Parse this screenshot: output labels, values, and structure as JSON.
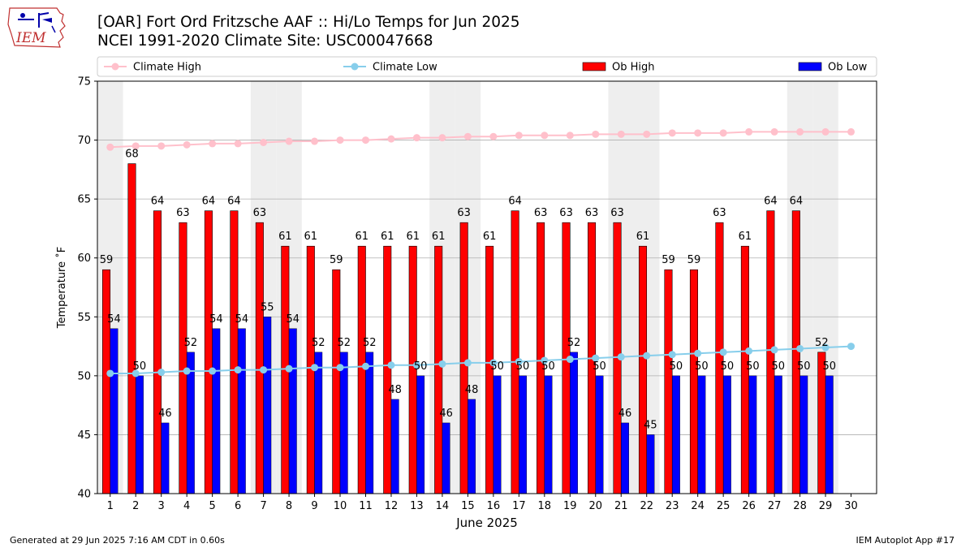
{
  "title_line1": "[OAR] Fort Ord Fritzsche AAF :: Hi/Lo Temps for Jun 2025",
  "title_line2": "NCEI 1991-2020 Climate Site: USC00047668",
  "logo_text": "IEM",
  "footer_left": "Generated at 29 Jun 2025 7:16 AM CDT in 0.60s",
  "footer_right": "IEM Autoplot App #17",
  "colors": {
    "climate_high": "#ffc0cb",
    "climate_low": "#87ceeb",
    "ob_high": "#ff0000",
    "ob_low": "#0000ff",
    "weekend_band": "#eeeeee",
    "grid": "#b0b0b0"
  },
  "chart_data": {
    "type": "bar",
    "xlabel": "June 2025",
    "ylabel": "Temperature ˚F",
    "ylim": [
      40,
      75
    ],
    "yticks": [
      40,
      45,
      50,
      55,
      60,
      65,
      70,
      75
    ],
    "grid": "horizontal",
    "legend_position": "top",
    "x": [
      1,
      2,
      3,
      4,
      5,
      6,
      7,
      8,
      9,
      10,
      11,
      12,
      13,
      14,
      15,
      16,
      17,
      18,
      19,
      20,
      21,
      22,
      23,
      24,
      25,
      26,
      27,
      28,
      29,
      30
    ],
    "shaded_days": [
      1,
      7,
      8,
      14,
      15,
      21,
      22,
      28,
      29
    ],
    "series": [
      {
        "name": "Climate High",
        "kind": "line",
        "values": [
          69.4,
          69.5,
          69.5,
          69.6,
          69.7,
          69.7,
          69.8,
          69.9,
          69.9,
          70.0,
          70.0,
          70.1,
          70.2,
          70.2,
          70.3,
          70.3,
          70.4,
          70.4,
          70.4,
          70.5,
          70.5,
          70.5,
          70.6,
          70.6,
          70.6,
          70.7,
          70.7,
          70.7,
          70.7,
          70.7
        ]
      },
      {
        "name": "Climate Low",
        "kind": "line",
        "values": [
          50.2,
          50.2,
          50.3,
          50.4,
          50.4,
          50.5,
          50.5,
          50.6,
          50.7,
          50.7,
          50.8,
          50.9,
          50.9,
          51.0,
          51.1,
          51.1,
          51.2,
          51.3,
          51.4,
          51.5,
          51.6,
          51.7,
          51.8,
          51.9,
          52.0,
          52.1,
          52.2,
          52.3,
          52.4,
          52.5
        ]
      },
      {
        "name": "Ob High",
        "kind": "bar",
        "values": [
          59,
          68,
          64,
          63,
          64,
          64,
          63,
          61,
          61,
          59,
          61,
          61,
          61,
          61,
          63,
          61,
          64,
          63,
          63,
          63,
          63,
          61,
          59,
          59,
          63,
          61,
          64,
          64,
          52,
          null
        ]
      },
      {
        "name": "Ob Low",
        "kind": "bar",
        "values": [
          54,
          50,
          46,
          52,
          54,
          54,
          55,
          54,
          52,
          52,
          52,
          48,
          50,
          46,
          48,
          50,
          50,
          50,
          52,
          50,
          46,
          45,
          50,
          50,
          50,
          50,
          50,
          50,
          50,
          null
        ]
      }
    ]
  }
}
